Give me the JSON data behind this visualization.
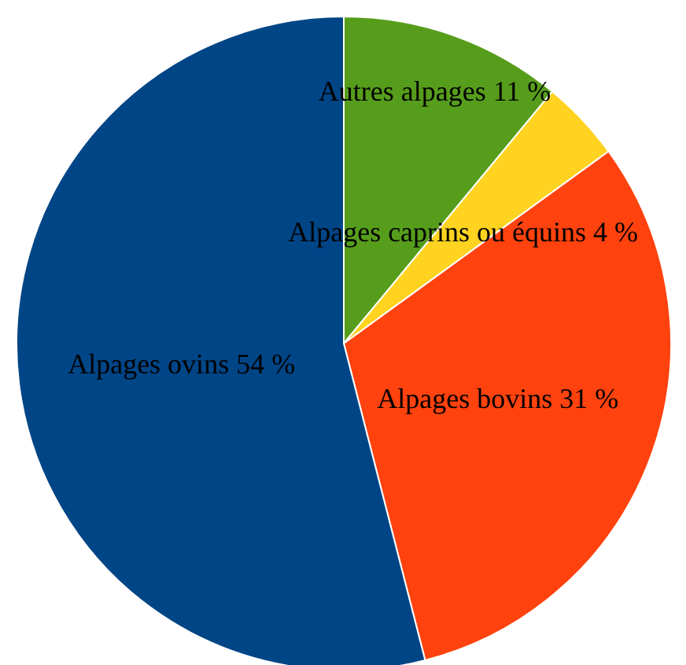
{
  "chart_data": {
    "type": "pie",
    "categories": [
      "Autres alpages",
      "Alpages caprins ou équins",
      "Alpages bovins",
      "Alpages ovins"
    ],
    "values": [
      11,
      4,
      31,
      54
    ],
    "value_labels": [
      "11 %",
      "4 %",
      "31 %",
      "54 %"
    ],
    "colors": [
      "#579d1c",
      "#ffd320",
      "#ff420e",
      "#004586"
    ]
  }
}
